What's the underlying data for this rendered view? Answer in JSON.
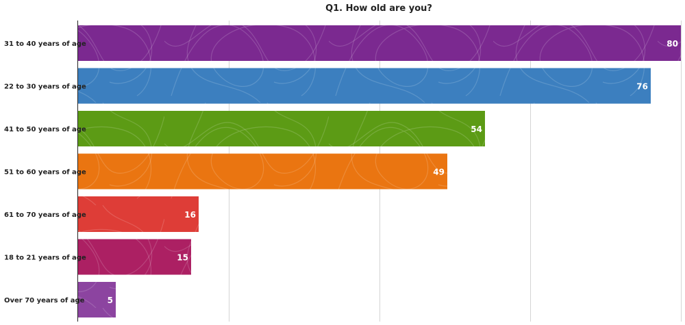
{
  "chart_data": {
    "type": "bar",
    "orientation": "horizontal",
    "title": "Q1. How old are you?",
    "xlabel": "",
    "ylabel": "",
    "xlim": [
      0,
      80
    ],
    "grid": true,
    "legend": "none",
    "categories": [
      "31 to 40 years of age",
      "22 to 30 years of age",
      "41 to 50 years of age",
      "51 to 60 years of age",
      "61 to 70 years of age",
      "18 to 21 years of age",
      "Over 70 years of age"
    ],
    "values": [
      80,
      76,
      54,
      49,
      16,
      15,
      5
    ],
    "colors": [
      "#7b2990",
      "#3c7fbf",
      "#5c9b15",
      "#ea7511",
      "#de3d37",
      "#ac2063",
      "#8c44a0"
    ]
  }
}
